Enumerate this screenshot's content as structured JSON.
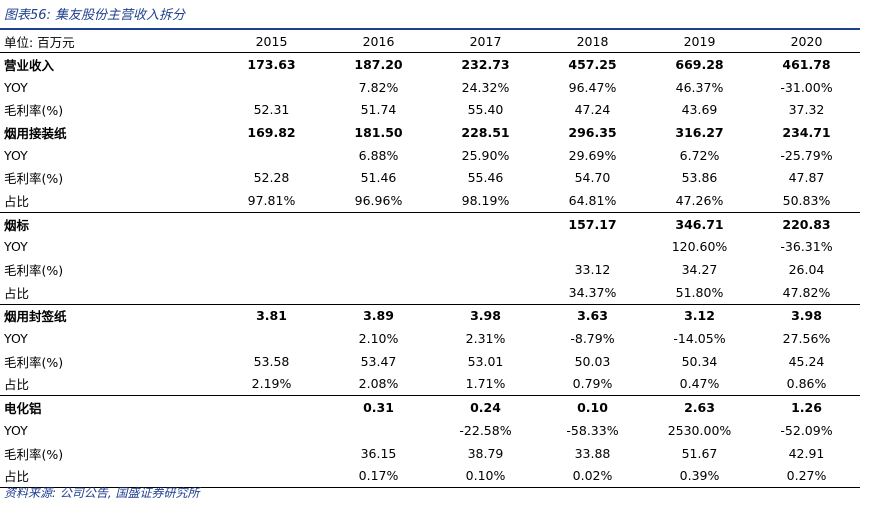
{
  "title": "图表56:  集友股份主营收入拆分",
  "header": {
    "unit": "单位:  百万元",
    "years": [
      "2015",
      "2016",
      "2017",
      "2018",
      "2019",
      "2020"
    ]
  },
  "rows": [
    {
      "label": "营业收入",
      "values": [
        "173.63",
        "187.20",
        "232.73",
        "457.25",
        "669.28",
        "461.78"
      ],
      "bold": true,
      "group_start": false
    },
    {
      "label": "YOY",
      "values": [
        "",
        "7.82%",
        "24.32%",
        "96.47%",
        "46.37%",
        "-31.00%"
      ],
      "bold": false,
      "group_start": false
    },
    {
      "label": "毛利率(%)",
      "values": [
        "52.31",
        "51.74",
        "55.40",
        "47.24",
        "43.69",
        "37.32"
      ],
      "bold": false,
      "group_start": false
    },
    {
      "label": "烟用接装纸",
      "values": [
        "169.82",
        "181.50",
        "228.51",
        "296.35",
        "316.27",
        "234.71"
      ],
      "bold": true,
      "group_start": false
    },
    {
      "label": "YOY",
      "values": [
        "",
        "6.88%",
        "25.90%",
        "29.69%",
        "6.72%",
        "-25.79%"
      ],
      "bold": false,
      "group_start": false
    },
    {
      "label": "毛利率(%)",
      "values": [
        "52.28",
        "51.46",
        "55.46",
        "54.70",
        "53.86",
        "47.87"
      ],
      "bold": false,
      "group_start": false
    },
    {
      "label": "占比",
      "values": [
        "97.81%",
        "96.96%",
        "98.19%",
        "64.81%",
        "47.26%",
        "50.83%"
      ],
      "bold": false,
      "group_start": false
    },
    {
      "label": "烟标",
      "values": [
        "",
        "",
        "",
        "157.17",
        "346.71",
        "220.83"
      ],
      "bold": true,
      "group_start": true
    },
    {
      "label": "YOY",
      "values": [
        "",
        "",
        "",
        "",
        "120.60%",
        "-36.31%"
      ],
      "bold": false,
      "group_start": false
    },
    {
      "label": "毛利率(%)",
      "values": [
        "",
        "",
        "",
        "33.12",
        "34.27",
        "26.04"
      ],
      "bold": false,
      "group_start": false
    },
    {
      "label": "占比",
      "values": [
        "",
        "",
        "",
        "34.37%",
        "51.80%",
        "47.82%"
      ],
      "bold": false,
      "group_start": false
    },
    {
      "label": "烟用封签纸",
      "values": [
        "3.81",
        "3.89",
        "3.98",
        "3.63",
        "3.12",
        "3.98"
      ],
      "bold": true,
      "group_start": true
    },
    {
      "label": "YOY",
      "values": [
        "",
        "2.10%",
        "2.31%",
        "-8.79%",
        "-14.05%",
        "27.56%"
      ],
      "bold": false,
      "group_start": false
    },
    {
      "label": "毛利率(%)",
      "values": [
        "53.58",
        "53.47",
        "53.01",
        "50.03",
        "50.34",
        "45.24"
      ],
      "bold": false,
      "group_start": false
    },
    {
      "label": "占比",
      "values": [
        "2.19%",
        "2.08%",
        "1.71%",
        "0.79%",
        "0.47%",
        "0.86%"
      ],
      "bold": false,
      "group_start": false
    },
    {
      "label": "电化铝",
      "values": [
        "",
        "0.31",
        "0.24",
        "0.10",
        "2.63",
        "1.26"
      ],
      "bold": true,
      "group_start": true
    },
    {
      "label": "YOY",
      "values": [
        "",
        "",
        "-22.58%",
        "-58.33%",
        "2530.00%",
        "-52.09%"
      ],
      "bold": false,
      "group_start": false
    },
    {
      "label": "毛利率(%)",
      "values": [
        "",
        "36.15",
        "38.79",
        "33.88",
        "51.67",
        "42.91"
      ],
      "bold": false,
      "group_start": false
    },
    {
      "label": "占比",
      "values": [
        "",
        "0.17%",
        "0.10%",
        "0.02%",
        "0.39%",
        "0.27%"
      ],
      "bold": false,
      "group_start": false
    }
  ],
  "source": "资料来源:  公司公告,  国盛证券研究所",
  "colors": {
    "accent": "#1f3f8f",
    "rule": "#000000"
  }
}
